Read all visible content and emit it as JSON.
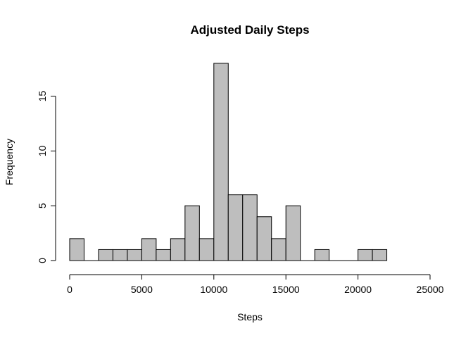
{
  "chart_data": {
    "type": "bar",
    "title": "Adjusted Daily Steps",
    "xlabel": "Steps",
    "ylabel": "Frequency",
    "bin_width": 1000,
    "bins": [
      {
        "start": 0,
        "end": 1000,
        "count": 2
      },
      {
        "start": 1000,
        "end": 2000,
        "count": 0
      },
      {
        "start": 2000,
        "end": 3000,
        "count": 1
      },
      {
        "start": 3000,
        "end": 4000,
        "count": 1
      },
      {
        "start": 4000,
        "end": 5000,
        "count": 1
      },
      {
        "start": 5000,
        "end": 6000,
        "count": 2
      },
      {
        "start": 6000,
        "end": 7000,
        "count": 1
      },
      {
        "start": 7000,
        "end": 8000,
        "count": 2
      },
      {
        "start": 8000,
        "end": 9000,
        "count": 5
      },
      {
        "start": 9000,
        "end": 10000,
        "count": 2
      },
      {
        "start": 10000,
        "end": 11000,
        "count": 18
      },
      {
        "start": 11000,
        "end": 12000,
        "count": 6
      },
      {
        "start": 12000,
        "end": 13000,
        "count": 6
      },
      {
        "start": 13000,
        "end": 14000,
        "count": 4
      },
      {
        "start": 14000,
        "end": 15000,
        "count": 2
      },
      {
        "start": 15000,
        "end": 16000,
        "count": 5
      },
      {
        "start": 16000,
        "end": 17000,
        "count": 0
      },
      {
        "start": 17000,
        "end": 18000,
        "count": 1
      },
      {
        "start": 18000,
        "end": 19000,
        "count": 0
      },
      {
        "start": 19000,
        "end": 20000,
        "count": 0
      },
      {
        "start": 20000,
        "end": 21000,
        "count": 1
      },
      {
        "start": 21000,
        "end": 22000,
        "count": 1
      }
    ],
    "xlim": [
      0,
      25000
    ],
    "ylim": [
      0,
      18
    ],
    "x_ticks": [
      0,
      5000,
      10000,
      15000,
      20000,
      25000
    ],
    "y_ticks": [
      0,
      5,
      10,
      15
    ],
    "bar_color": "#bebebe",
    "grid": false
  }
}
